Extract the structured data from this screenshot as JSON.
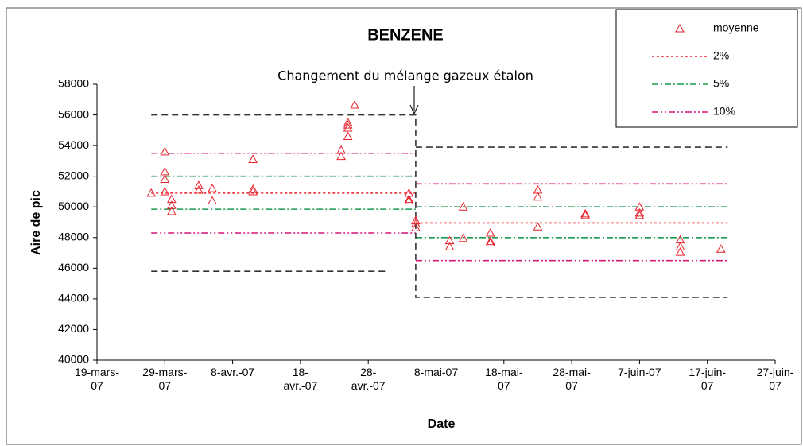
{
  "chart_data": {
    "type": "scatter",
    "title": "BENZENE",
    "x_label": "Date",
    "y_label": "Aire de pic",
    "annotation": "Changement du mélange gazeux étalon",
    "xlim": [
      "2007-03-19",
      "2007-06-27"
    ],
    "xticks": [
      {
        "value": "2007-03-19",
        "label": "19-mars-07"
      },
      {
        "value": "2007-03-29",
        "label": "29-mars-07"
      },
      {
        "value": "2007-04-08",
        "label": "8-avr.-07"
      },
      {
        "value": "2007-04-18",
        "label": "18-avr.-07"
      },
      {
        "value": "2007-04-28",
        "label": "28-avr.-07"
      },
      {
        "value": "2007-05-08",
        "label": "8-mai-07"
      },
      {
        "value": "2007-05-18",
        "label": "18-mai-07"
      },
      {
        "value": "2007-05-28",
        "label": "28-mai-07"
      },
      {
        "value": "2007-06-07",
        "label": "7-juin-07"
      },
      {
        "value": "2007-06-17",
        "label": "17-juin-07"
      },
      {
        "value": "2007-06-27",
        "label": "27-juin-07"
      }
    ],
    "ylim": [
      40000,
      58000
    ],
    "yticks": [
      40000,
      42000,
      44000,
      46000,
      48000,
      50000,
      52000,
      54000,
      56000,
      58000
    ],
    "legend_position": "top-right",
    "series": [
      {
        "name": "moyenne",
        "color": "#e8202a",
        "marker": "triangle",
        "x": [
          "2007-03-27",
          "2007-03-29",
          "2007-03-29",
          "2007-03-29",
          "2007-03-29",
          "2007-03-30",
          "2007-03-30",
          "2007-03-30",
          "2007-04-03",
          "2007-04-03",
          "2007-04-05",
          "2007-04-05",
          "2007-04-11",
          "2007-04-11",
          "2007-04-11",
          "2007-04-24",
          "2007-04-24",
          "2007-04-25",
          "2007-04-25",
          "2007-04-25",
          "2007-04-25",
          "2007-04-26",
          "2007-05-04",
          "2007-05-04",
          "2007-05-04",
          "2007-05-05",
          "2007-05-05",
          "2007-05-05",
          "2007-05-10",
          "2007-05-10",
          "2007-05-12",
          "2007-05-12",
          "2007-05-16",
          "2007-05-16",
          "2007-05-16",
          "2007-05-23",
          "2007-05-23",
          "2007-05-23",
          "2007-05-30",
          "2007-05-30",
          "2007-06-07",
          "2007-06-07",
          "2007-06-07",
          "2007-06-13",
          "2007-06-13",
          "2007-06-13",
          "2007-06-19"
        ],
        "values": [
          50900,
          53600,
          52300,
          51800,
          51000,
          50500,
          50100,
          49700,
          51400,
          51100,
          51200,
          50400,
          53100,
          51150,
          51000,
          53700,
          53300,
          55150,
          55500,
          55350,
          54600,
          56650,
          50900,
          50500,
          50400,
          49100,
          48900,
          48650,
          47800,
          47400,
          50000,
          47950,
          48300,
          47750,
          47650,
          51100,
          50650,
          48700,
          49550,
          49450,
          50000,
          49600,
          49450,
          47850,
          47400,
          47050,
          47250
        ]
      },
      {
        "name": "2%",
        "color": "#e8202a",
        "line_style": "dot",
        "x": [
          "2007-03-27",
          "2007-05-05",
          "2007-05-05",
          "2007-05-05",
          "2007-06-20"
        ],
        "values": [
          50900,
          50900,
          null,
          48950,
          48950
        ]
      },
      {
        "name": "5%",
        "color": "#1a9a50",
        "line_style": "dashdot",
        "x": [
          "2007-03-27",
          "2007-05-05",
          "2007-05-05",
          "2007-03-27",
          "2007-05-05",
          "2007-05-05",
          "2007-05-05",
          "2007-06-20",
          "2007-06-20",
          "2007-05-05",
          "2007-06-20"
        ],
        "values": [
          52000,
          52000,
          null,
          49850,
          49850,
          null,
          50000,
          50000,
          null,
          48000,
          48000
        ]
      },
      {
        "name": "10%",
        "color": "#d4157a",
        "line_style": "dashdotdot",
        "x": [
          "2007-03-27",
          "2007-05-05",
          "2007-05-05",
          "2007-03-27",
          "2007-05-05",
          "2007-05-05",
          "2007-05-05",
          "2007-06-20",
          "2007-06-20",
          "2007-05-05",
          "2007-06-20"
        ],
        "values": [
          53500,
          53500,
          null,
          48300,
          48300,
          null,
          51500,
          51500,
          null,
          46500,
          46500
        ]
      },
      {
        "color": "#333333",
        "line_style": "dash",
        "x": [
          "2007-03-27",
          "2007-05-05",
          "2007-05-05",
          "2007-06-20",
          "2007-06-20",
          "2007-05-05",
          "2007-06-20",
          "2007-06-20",
          "2007-03-27",
          "2007-05-01"
        ],
        "values": [
          56000,
          56000,
          44100,
          44100,
          null,
          53900,
          53900,
          null,
          45800,
          45800
        ]
      }
    ]
  }
}
